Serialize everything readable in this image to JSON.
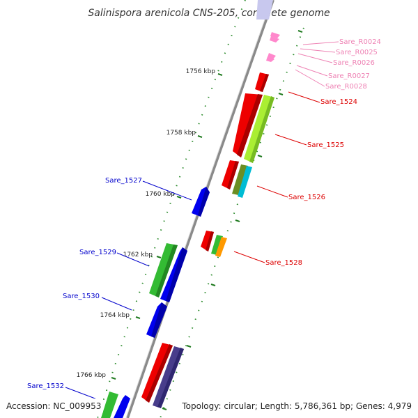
{
  "title": "Salinispora arenicola CNS-205, complete genome",
  "footer": {
    "accession": "Accession: NC_009953",
    "summary": "Topology: circular; Length: 5,786,361 bp; Genes: 4,979"
  },
  "colors": {
    "backbone": "#8a8a8a",
    "tick": "#1f7a1f",
    "dot": "#2a8a2a",
    "rna_label": "#ee82b4",
    "fwd_label": "#dd0000",
    "rev_label": "#0000cc"
  },
  "scale_labels": [
    "1756 kbp",
    "1758 kbp",
    "1760 kbp",
    "1762 kbp",
    "1764 kbp",
    "1766 kbp"
  ],
  "forward_labels": [
    "Sare_R0024",
    "Sare_R0025",
    "Sare_R0026",
    "Sare_R0027",
    "Sare_R0028",
    "Sare_1524",
    "Sare_1525",
    "Sare_1526",
    "Sare_1528"
  ],
  "reverse_labels": [
    "Sare_1527",
    "Sare_1529",
    "Sare_1530",
    "Sare_1532"
  ],
  "feature_colors": {
    "red": "#ee0000",
    "lime": "#aaee33",
    "olive": "#6b8e23",
    "cyan": "#00bcd4",
    "blue": "#0000ee",
    "green": "#33bb33",
    "orange": "#ff9900",
    "purple": "#483d8b",
    "lavender": "#c8c8ee",
    "pink": "#ff88cc"
  }
}
